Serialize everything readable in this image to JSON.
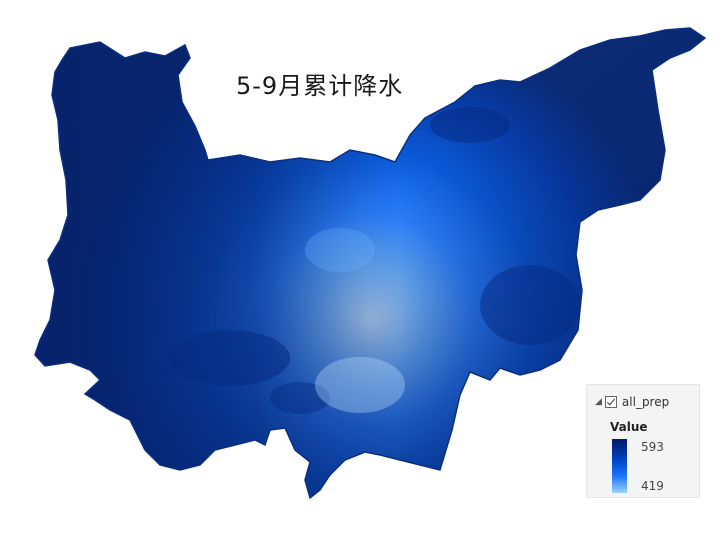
{
  "map": {
    "title": "5-9月累计降水",
    "colors": {
      "high": "#0a2a74",
      "mid": "#0b5ad8",
      "low": "#cbe6ff"
    }
  },
  "legend": {
    "layer_name": "all_prep",
    "checked": true,
    "field_label": "Value",
    "max_value": "593",
    "min_value": "419"
  }
}
